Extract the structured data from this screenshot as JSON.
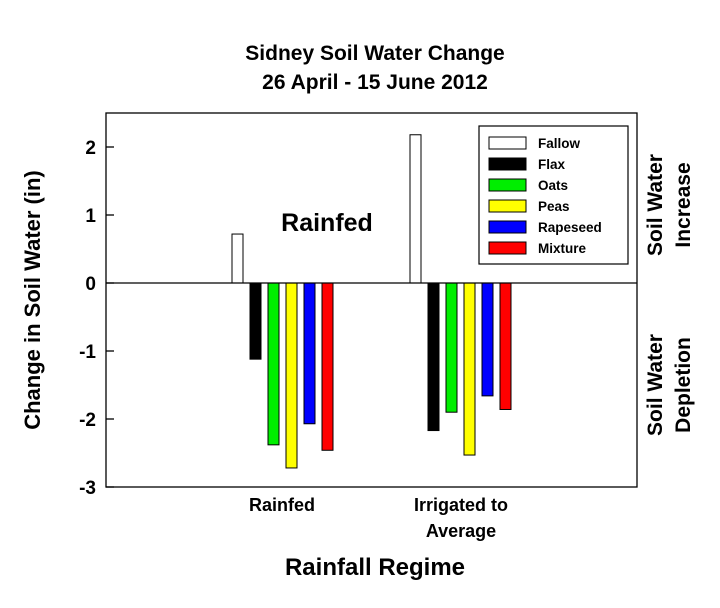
{
  "chart_data": {
    "type": "bar",
    "title": [
      "Sidney Soil Water Change",
      "26 April - 15 June 2012"
    ],
    "xlabel": "Rainfall Regime",
    "ylabel": "Change in Soil Water (in)",
    "categories": [
      [
        "Rainfed"
      ],
      [
        "Irrigated to",
        "Average"
      ]
    ],
    "ylim": [
      -3,
      2.5
    ],
    "yticks": [
      2,
      1,
      0,
      -1,
      -2,
      -3
    ],
    "series": [
      {
        "name": "Fallow",
        "color": "#ffffff",
        "values": [
          0.72,
          2.18
        ]
      },
      {
        "name": "Flax",
        "color": "#000000",
        "values": [
          -1.12,
          -2.17
        ]
      },
      {
        "name": "Oats",
        "color": "#00ee00",
        "values": [
          -2.38,
          -1.9
        ]
      },
      {
        "name": "Peas",
        "color": "#ffff00",
        "values": [
          -2.72,
          -2.53
        ]
      },
      {
        "name": "Rapeseed",
        "color": "#0000ff",
        "values": [
          -2.07,
          -1.66
        ]
      },
      {
        "name": "Mixture",
        "color": "#ff0000",
        "values": [
          -2.46,
          -1.86
        ]
      }
    ],
    "annotation": "Rainfed",
    "right_labels": {
      "top": [
        "Soil Water",
        "Increase"
      ],
      "bottom": [
        "Soil Water",
        "Depletion"
      ]
    },
    "legend_position": "top-right",
    "grid": false
  }
}
